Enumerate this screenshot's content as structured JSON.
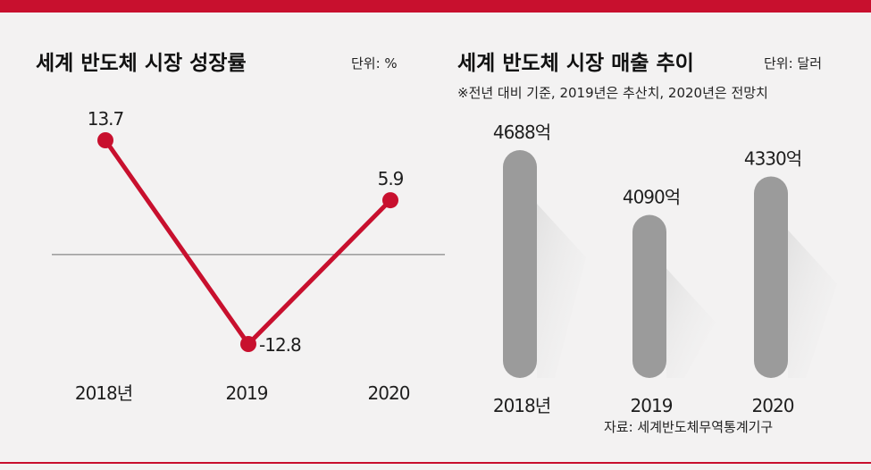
{
  "colors": {
    "accent": "#c8102e",
    "bar": "#9b9b9b",
    "background": "#f3f2f2"
  },
  "left_panel": {
    "title": "세계 반도체 시장 성장률",
    "unit": "단위: %"
  },
  "right_panel": {
    "title": "세계 반도체 시장 매출 추이",
    "unit": "단위: 달러",
    "note": "※전년 대비 기준, 2019년은 추산치, 2020년은 전망치",
    "source": "자료: 세계반도체무역통계기구"
  },
  "chart_data": [
    {
      "type": "line",
      "title": "세계 반도체 시장 성장률",
      "unit": "%",
      "categories": [
        "2018년",
        "2019",
        "2020"
      ],
      "values": [
        13.7,
        -12.8,
        5.9
      ],
      "value_labels": [
        "13.7",
        "-12.8",
        "5.9"
      ],
      "baseline": 0,
      "grid": false
    },
    {
      "type": "bar",
      "title": "세계 반도체 시장 매출 추이",
      "unit": "달러",
      "categories": [
        "2018년",
        "2019",
        "2020"
      ],
      "values": [
        468800000000,
        409000000000,
        433000000000
      ],
      "value_labels": [
        "4688억",
        "4090억",
        "4330억"
      ],
      "grid": false
    }
  ]
}
